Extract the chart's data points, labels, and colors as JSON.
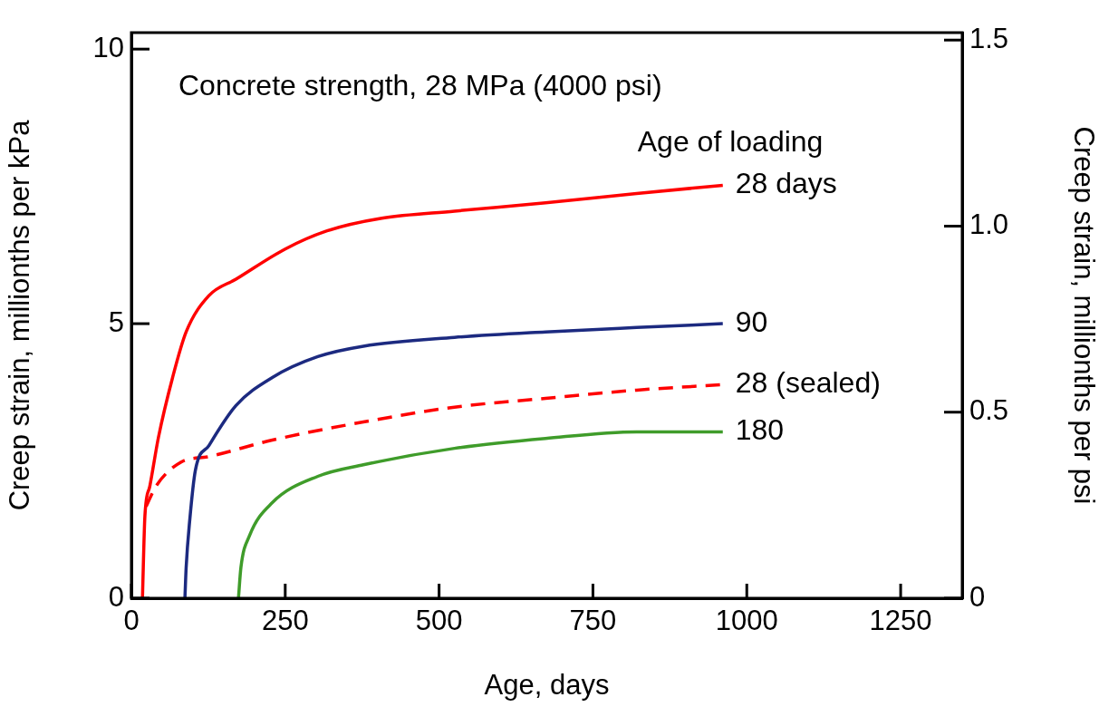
{
  "chart_data": {
    "type": "line",
    "annotations": [
      "Concrete strength, 28 MPa (4000 psi)"
    ],
    "legend_title": "Age of loading",
    "xlabel": "Age, days",
    "ylabel": "Creep strain, millionths per kPa",
    "y2label": "Creep strain, millionths per psi",
    "xlim": [
      0,
      1350
    ],
    "xticks": [
      0,
      250,
      500,
      750,
      1000,
      1250
    ],
    "ylim": [
      0,
      10.3
    ],
    "yticks": [
      0,
      5,
      10
    ],
    "y2lim": [
      0,
      1.52
    ],
    "y2ticks": [
      0,
      0.5,
      {
        "value": 1,
        "label": "1.0"
      },
      1.5
    ],
    "grid": false,
    "legend": false,
    "marker": "none",
    "series": [
      {
        "name": "28 days",
        "color": "#ff0000",
        "line_style": "solid",
        "x": [
          18,
          22,
          30,
          44,
          67,
          89,
          126,
          170,
          250,
          318,
          407,
          525,
          673,
          821,
          961
        ],
        "values": [
          0,
          1.5,
          2.04,
          2.93,
          4.02,
          4.85,
          5.51,
          5.81,
          6.36,
          6.69,
          6.92,
          7.05,
          7.2,
          7.37,
          7.52
        ]
      },
      {
        "name": "90",
        "color": "#1c2a80",
        "line_style": "solid",
        "x": [
          87,
          89,
          95,
          104,
          126,
          170,
          229,
          303,
          377,
          525,
          673,
          821,
          961
        ],
        "values": [
          0,
          0.56,
          1.44,
          2.33,
          2.78,
          3.51,
          4.02,
          4.4,
          4.59,
          4.75,
          4.85,
          4.93,
          5.0
        ]
      },
      {
        "name": "28 (sealed)",
        "color": "#ff0000",
        "line_style": "dashed",
        "x": [
          24,
          40,
          81,
          126,
          229,
          377,
          525,
          673,
          821,
          961
        ],
        "values": [
          1.67,
          2.04,
          2.48,
          2.58,
          2.88,
          3.21,
          3.48,
          3.64,
          3.79,
          3.89
        ]
      },
      {
        "name": "180",
        "color": "#3f9c2a",
        "line_style": "solid",
        "x": [
          174,
          178,
          192,
          229,
          303,
          377,
          525,
          673,
          821,
          961
        ],
        "values": [
          0,
          0.56,
          1.14,
          1.74,
          2.22,
          2.43,
          2.73,
          2.91,
          3.03,
          3.03
        ]
      }
    ]
  }
}
